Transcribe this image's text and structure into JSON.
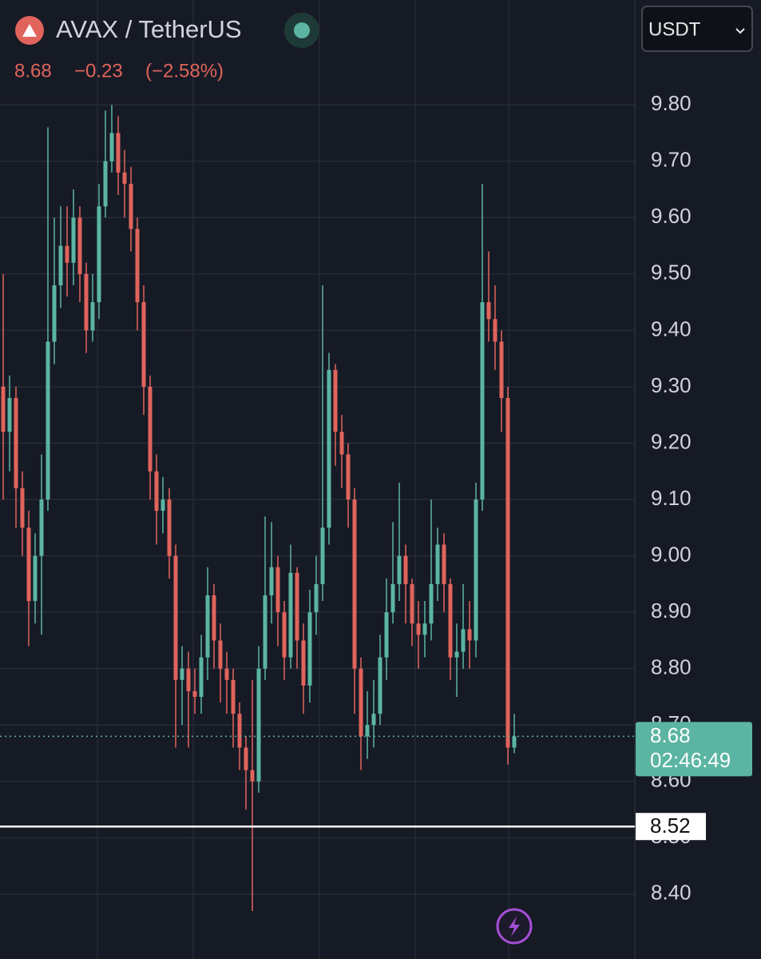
{
  "chart_data": {
    "type": "candlestick",
    "title": "AVAX / TetherUS",
    "last_price": 8.68,
    "change": "−0.23",
    "change_pct": "(−2.58%)",
    "currency": "USDT",
    "countdown": "02:46:49",
    "price_line": 8.52,
    "up_color": "#5bb5a2",
    "down_color": "#e0645c",
    "ylim": [
      8.285,
      9.986
    ],
    "yticks": [
      {
        "value": 9.8,
        "label": "9.80"
      },
      {
        "value": 9.7,
        "label": "9.70"
      },
      {
        "value": 9.6,
        "label": "9.60"
      },
      {
        "value": 9.5,
        "label": "9.50"
      },
      {
        "value": 9.4,
        "label": "9.40"
      },
      {
        "value": 9.3,
        "label": "9.30"
      },
      {
        "value": 9.2,
        "label": "9.20"
      },
      {
        "value": 9.1,
        "label": "9.10"
      },
      {
        "value": 9.0,
        "label": "9.00"
      },
      {
        "value": 8.9,
        "label": "8.90"
      },
      {
        "value": 8.8,
        "label": "8.80"
      },
      {
        "value": 8.7,
        "label": "8.70"
      },
      {
        "value": 8.6,
        "label": "8.60"
      },
      {
        "value": 8.5,
        "label": "8.50"
      },
      {
        "value": 8.4,
        "label": "8.40"
      }
    ],
    "grid": true,
    "open": [
      9.3,
      9.22,
      9.28,
      9.12,
      9.05,
      8.92,
      9.0,
      9.1,
      9.38,
      9.48,
      9.55,
      9.52,
      9.6,
      9.5,
      9.4,
      9.45,
      9.62,
      9.7,
      9.75,
      9.68,
      9.66,
      9.58,
      9.45,
      9.3,
      9.15,
      9.08,
      9.1,
      9.0,
      8.78,
      8.8,
      8.76,
      8.75,
      8.82,
      8.93,
      8.85,
      8.8,
      8.78,
      8.72,
      8.66,
      8.62,
      8.6,
      8.8,
      8.93,
      8.98,
      8.9,
      8.82,
      8.97,
      8.85,
      8.77,
      8.9,
      8.95,
      9.05,
      9.33,
      9.22,
      9.18,
      9.1,
      8.8,
      8.68,
      8.7,
      8.72,
      8.82,
      8.9,
      8.95,
      9.0,
      8.95,
      8.88,
      8.86,
      8.88,
      8.95,
      9.02,
      8.95,
      8.82,
      8.83,
      8.87,
      8.85,
      9.1,
      9.45,
      9.42,
      9.38,
      9.28,
      8.66
    ],
    "high": [
      9.5,
      9.32,
      9.3,
      9.15,
      9.08,
      9.04,
      9.18,
      9.76,
      9.6,
      9.62,
      9.62,
      9.65,
      9.62,
      9.52,
      9.5,
      9.66,
      9.79,
      9.8,
      9.78,
      9.72,
      9.69,
      9.6,
      9.48,
      9.32,
      9.18,
      9.14,
      9.12,
      9.02,
      8.84,
      8.83,
      8.8,
      8.86,
      8.98,
      8.95,
      8.88,
      8.83,
      8.8,
      8.74,
      8.68,
      8.78,
      8.84,
      9.07,
      9.06,
      9.0,
      8.92,
      9.02,
      8.98,
      8.88,
      8.94,
      9.0,
      9.48,
      9.36,
      9.34,
      9.25,
      9.2,
      9.12,
      8.82,
      8.76,
      8.78,
      8.86,
      8.96,
      9.06,
      9.13,
      9.02,
      8.96,
      8.92,
      8.92,
      9.1,
      9.05,
      9.04,
      8.96,
      8.88,
      8.95,
      8.92,
      9.13,
      9.66,
      9.54,
      9.48,
      9.4,
      9.3,
      8.72
    ],
    "low": [
      9.1,
      9.15,
      9.05,
      9.0,
      8.84,
      8.88,
      8.86,
      9.08,
      9.34,
      9.44,
      9.46,
      9.48,
      9.45,
      9.36,
      9.38,
      9.42,
      9.6,
      9.68,
      9.64,
      9.6,
      9.54,
      9.4,
      9.25,
      9.1,
      9.02,
      9.04,
      8.96,
      8.66,
      8.7,
      8.66,
      8.72,
      8.72,
      8.78,
      8.8,
      8.74,
      8.72,
      8.66,
      8.62,
      8.55,
      8.37,
      8.58,
      8.78,
      8.88,
      8.84,
      8.78,
      8.8,
      8.8,
      8.72,
      8.74,
      8.86,
      8.92,
      9.02,
      9.16,
      9.12,
      9.05,
      8.72,
      8.62,
      8.64,
      8.66,
      8.7,
      8.78,
      8.88,
      8.92,
      8.88,
      8.84,
      8.8,
      8.82,
      8.85,
      8.92,
      8.9,
      8.78,
      8.75,
      8.8,
      8.8,
      8.82,
      9.08,
      9.38,
      9.33,
      9.22,
      8.63,
      8.65
    ],
    "close": [
      9.22,
      9.28,
      9.12,
      9.05,
      8.92,
      9.0,
      9.1,
      9.38,
      9.48,
      9.55,
      9.52,
      9.6,
      9.5,
      9.4,
      9.45,
      9.62,
      9.7,
      9.75,
      9.68,
      9.66,
      9.58,
      9.45,
      9.3,
      9.15,
      9.08,
      9.1,
      9.0,
      8.78,
      8.8,
      8.76,
      8.75,
      8.82,
      8.93,
      8.85,
      8.8,
      8.78,
      8.72,
      8.66,
      8.62,
      8.6,
      8.8,
      8.93,
      8.98,
      8.9,
      8.82,
      8.97,
      8.85,
      8.77,
      8.9,
      8.95,
      9.05,
      9.33,
      9.22,
      9.18,
      9.1,
      8.8,
      8.68,
      8.7,
      8.72,
      8.82,
      8.9,
      8.95,
      9.0,
      8.95,
      8.88,
      8.86,
      8.88,
      8.95,
      9.02,
      8.95,
      8.82,
      8.83,
      8.87,
      8.85,
      9.1,
      9.45,
      9.42,
      9.38,
      9.28,
      8.66,
      8.68
    ]
  }
}
